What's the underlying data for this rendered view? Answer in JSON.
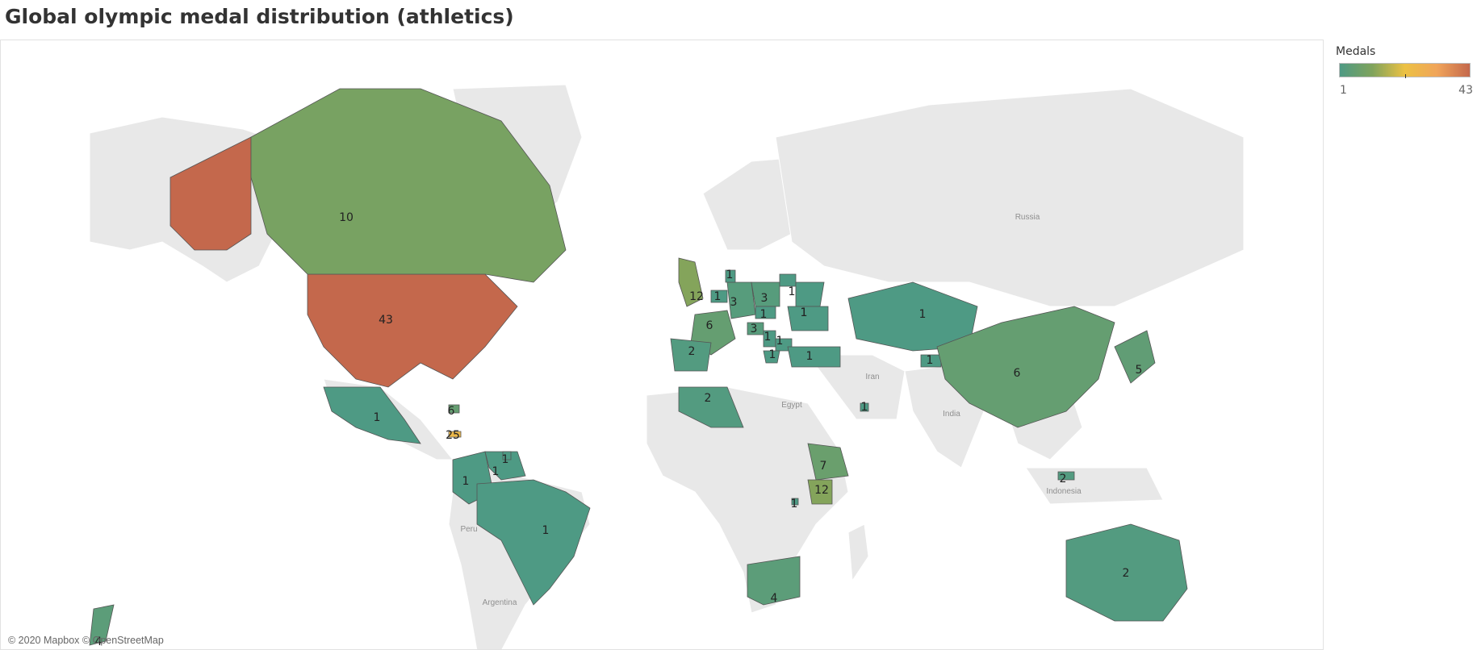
{
  "title": "Global olympic medal distribution (athletics)",
  "attribution": "© 2020 Mapbox © OpenStreetMap",
  "legend": {
    "title": "Medals",
    "min": "1",
    "max": "43",
    "colors": [
      "#4e9a84",
      "#7fa35c",
      "#ecc144",
      "#f0a45a",
      "#c4684c"
    ]
  },
  "colors": {
    "land_no_data": "#e8e8e8",
    "border": "#ffffff",
    "country_stroke": "#555555",
    "low": "#53977f",
    "mid_low": "#6e9c68",
    "high": "#c4684c"
  },
  "place_labels": [
    "Russia",
    "Iran",
    "Egypt",
    "India",
    "Indonesia",
    "Peru",
    "Argentina"
  ],
  "countries": [
    {
      "name": "USA",
      "medals": 43,
      "label": "43"
    },
    {
      "name": "Canada",
      "medals": 10,
      "label": "10"
    },
    {
      "name": "Mexico",
      "medals": 1,
      "label": "1"
    },
    {
      "name": "Jamaica",
      "medals": 25,
      "label": "25"
    },
    {
      "name": "Bahamas",
      "medals": 6,
      "label": "6"
    },
    {
      "name": "Colombia",
      "medals": 1,
      "label": "1"
    },
    {
      "name": "Venezuela",
      "medals": 1,
      "label": "1"
    },
    {
      "name": "Trinidad and Tobago",
      "medals": 1,
      "label": "1"
    },
    {
      "name": "Brazil",
      "medals": 1,
      "label": "1"
    },
    {
      "name": "Great Britain",
      "medals": 12,
      "label": "12"
    },
    {
      "name": "France",
      "medals": 6,
      "label": "6"
    },
    {
      "name": "Spain",
      "medals": 2,
      "label": "2"
    },
    {
      "name": "Belgium",
      "medals": 1,
      "label": "1"
    },
    {
      "name": "Germany",
      "medals": 3,
      "label": "3"
    },
    {
      "name": "Poland",
      "medals": 3,
      "label": "3"
    },
    {
      "name": "Lithuania",
      "medals": 1,
      "label": "1"
    },
    {
      "name": "Belarus",
      "medals": 1,
      "label": "1"
    },
    {
      "name": "Ukraine",
      "medals": 1,
      "label": "1"
    },
    {
      "name": "Czech Republic",
      "medals": 1,
      "label": "1"
    },
    {
      "name": "Croatia",
      "medals": 3,
      "label": "3"
    },
    {
      "name": "Serbia",
      "medals": 1,
      "label": "1"
    },
    {
      "name": "Bulgaria",
      "medals": 1,
      "label": "1"
    },
    {
      "name": "Greece",
      "medals": 1,
      "label": "1"
    },
    {
      "name": "Turkey",
      "medals": 1,
      "label": "1"
    },
    {
      "name": "Denmark",
      "medals": 1,
      "label": "1"
    },
    {
      "name": "Kazakhstan",
      "medals": 1,
      "label": "1"
    },
    {
      "name": "Tajikistan",
      "medals": 1,
      "label": "1"
    },
    {
      "name": "Qatar",
      "medals": 1,
      "label": "1"
    },
    {
      "name": "China",
      "medals": 6,
      "label": "6"
    },
    {
      "name": "Japan",
      "medals": 5,
      "label": "5"
    },
    {
      "name": "Algeria",
      "medals": 2,
      "label": "2"
    },
    {
      "name": "Ethiopia",
      "medals": 7,
      "label": "7"
    },
    {
      "name": "Kenya",
      "medals": 12,
      "label": "12"
    },
    {
      "name": "Burundi",
      "medals": 1,
      "label": "1"
    },
    {
      "name": "South Africa",
      "medals": 4,
      "label": "4"
    },
    {
      "name": "Australia",
      "medals": 2,
      "label": "2"
    },
    {
      "name": "New Zealand",
      "medals": 4,
      "label": "4"
    },
    {
      "name": "Indonesia",
      "medals": 2,
      "label": "2"
    }
  ]
}
